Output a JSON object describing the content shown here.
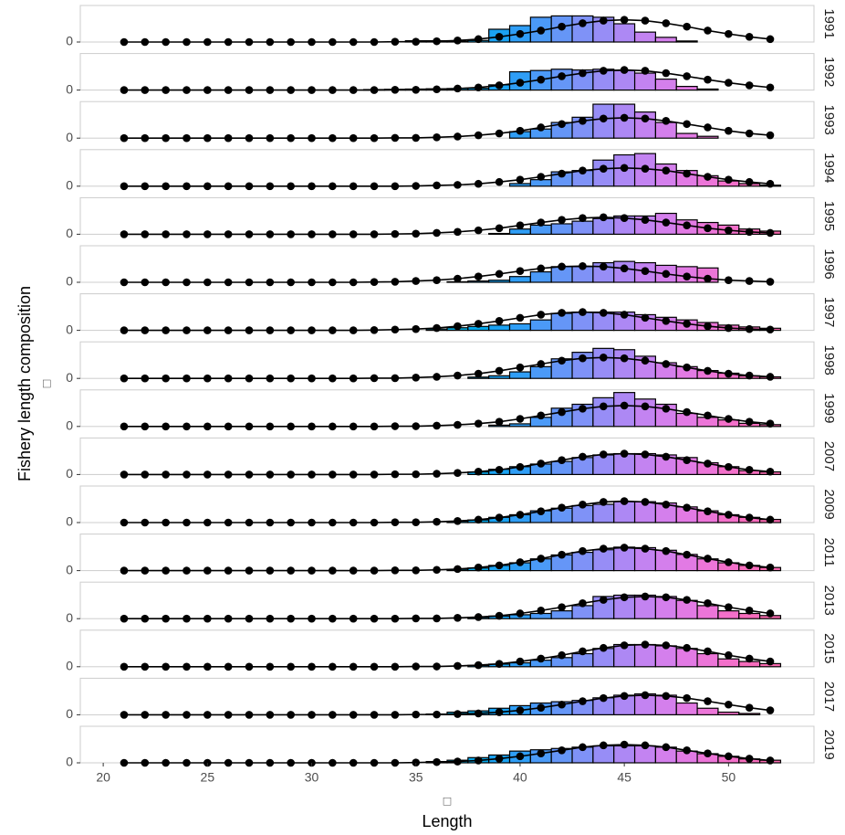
{
  "chart_data": {
    "type": "bar",
    "xlabel": "Length",
    "xlabel_note": "□",
    "ylabel": "Fishery length composition",
    "ylabel_note": "□",
    "xlim": [
      18.9,
      54.1
    ],
    "xticks": [
      20,
      25,
      30,
      35,
      40,
      45,
      50
    ],
    "ylim": [
      0,
      0.14
    ],
    "yticks": [
      0
    ],
    "x": [
      21,
      22,
      23,
      24,
      25,
      26,
      27,
      28,
      29,
      30,
      31,
      32,
      33,
      34,
      35,
      36,
      37,
      38,
      39,
      40,
      41,
      42,
      43,
      44,
      45,
      46,
      47,
      48,
      49,
      50,
      51,
      52
    ],
    "bar_colors": [
      "#00c19a",
      "#00c09e",
      "#00bfa2",
      "#00bea6",
      "#00bdaa",
      "#00bcad",
      "#00bbb0",
      "#00bab3",
      "#00b9b6",
      "#00b8b9",
      "#00b6bc",
      "#00b5bf",
      "#00b4b0",
      "#00b2bb",
      "#00b0c6",
      "#00add1",
      "#00aadc",
      "#05a6e8",
      "#1aa2f2",
      "#2f9ef6",
      "#4b9af7",
      "#6596f7",
      "#7f92f7",
      "#978df6",
      "#ad88f4",
      "#c383f1",
      "#d47fec",
      "#e27ae4",
      "#ec75d8",
      "#f370ca",
      "#f66cbc",
      "#f768ae"
    ],
    "bar_stroke": "#000000",
    "line_color": "#000000",
    "panel_border": "#cccccc",
    "panels": [
      {
        "label": "1991",
        "values": [
          0,
          0,
          0,
          0,
          0,
          0,
          0,
          0,
          0,
          0,
          0,
          0,
          0,
          0,
          0.005,
          0.005,
          0.003,
          0.006,
          0.049,
          0.063,
          0.095,
          0.1,
          0.1,
          0.095,
          0.07,
          0.038,
          0.018,
          0.004,
          0,
          0,
          0,
          0
        ],
        "line_values": [
          0,
          0,
          0,
          0,
          0,
          0,
          0,
          0,
          0,
          0,
          0,
          0,
          0,
          0.001,
          0.001,
          0.003,
          0.006,
          0.011,
          0.02,
          0.031,
          0.044,
          0.059,
          0.072,
          0.082,
          0.085,
          0.082,
          0.072,
          0.059,
          0.044,
          0.031,
          0.02,
          0.011
        ]
      },
      {
        "label": "1992",
        "values": [
          0,
          0,
          0,
          0,
          0,
          0,
          0,
          0,
          0,
          0,
          0,
          0,
          0.002,
          0.003,
          0.004,
          0.005,
          0.006,
          0.007,
          0.02,
          0.07,
          0.075,
          0.08,
          0.077,
          0.08,
          0.075,
          0.065,
          0.042,
          0.014,
          0.004,
          0,
          0,
          0
        ],
        "line_values": [
          0,
          0,
          0,
          0,
          0,
          0,
          0,
          0,
          0,
          0,
          0,
          0,
          0,
          0.001,
          0.001,
          0.003,
          0.006,
          0.01,
          0.018,
          0.028,
          0.04,
          0.053,
          0.065,
          0.074,
          0.077,
          0.074,
          0.065,
          0.053,
          0.04,
          0.028,
          0.018,
          0.01
        ]
      },
      {
        "label": "1993",
        "values": [
          0,
          0,
          0,
          0,
          0,
          0,
          0,
          0,
          0,
          0,
          0,
          0,
          0,
          0,
          0,
          0,
          0,
          0,
          0,
          0.025,
          0.035,
          0.06,
          0.08,
          0.13,
          0.13,
          0.1,
          0.06,
          0.018,
          0.007,
          0,
          0,
          0
        ],
        "line_values": [
          0,
          0,
          0,
          0,
          0,
          0,
          0,
          0,
          0,
          0,
          0,
          0,
          0,
          0.001,
          0.001,
          0.003,
          0.006,
          0.011,
          0.018,
          0.028,
          0.041,
          0.054,
          0.066,
          0.075,
          0.078,
          0.075,
          0.066,
          0.054,
          0.041,
          0.028,
          0.018,
          0.011
        ]
      },
      {
        "label": "1994",
        "values": [
          0,
          0,
          0,
          0,
          0,
          0,
          0,
          0,
          0,
          0,
          0,
          0,
          0,
          0,
          0,
          0,
          0,
          0,
          0,
          0.01,
          0.025,
          0.055,
          0.06,
          0.1,
          0.12,
          0.125,
          0.085,
          0.06,
          0.04,
          0.02,
          0.01,
          0.004
        ],
        "line_values": [
          0,
          0,
          0,
          0,
          0,
          0,
          0,
          0,
          0,
          0,
          0,
          0,
          0,
          0,
          0.001,
          0.003,
          0.005,
          0.009,
          0.016,
          0.025,
          0.036,
          0.048,
          0.06,
          0.067,
          0.07,
          0.067,
          0.06,
          0.048,
          0.036,
          0.025,
          0.016,
          0.009
        ]
      },
      {
        "label": "1995",
        "values": [
          0,
          0,
          0,
          0,
          0,
          0,
          0,
          0,
          0,
          0,
          0,
          0,
          0,
          0,
          0,
          0,
          0,
          0,
          0.003,
          0.02,
          0.035,
          0.04,
          0.05,
          0.06,
          0.07,
          0.07,
          0.08,
          0.055,
          0.045,
          0.035,
          0.02,
          0.012
        ],
        "line_values": [
          0,
          0,
          0,
          0,
          0,
          0,
          0,
          0,
          0,
          0,
          0,
          0,
          0,
          0.001,
          0.002,
          0.005,
          0.009,
          0.015,
          0.023,
          0.034,
          0.045,
          0.055,
          0.062,
          0.065,
          0.062,
          0.055,
          0.045,
          0.034,
          0.023,
          0.015,
          0.009,
          0.005
        ]
      },
      {
        "label": "1996",
        "values": [
          0,
          0,
          0,
          0,
          0,
          0,
          0,
          0,
          0,
          0,
          0,
          0,
          0,
          0,
          0,
          0,
          0.002,
          0.005,
          0.008,
          0.022,
          0.04,
          0.06,
          0.06,
          0.075,
          0.08,
          0.075,
          0.065,
          0.06,
          0.055,
          0,
          0,
          0
        ],
        "line_values": [
          0,
          0,
          0,
          0,
          0,
          0,
          0,
          0,
          0,
          0,
          0,
          0,
          0.001,
          0.002,
          0.005,
          0.008,
          0.014,
          0.022,
          0.032,
          0.043,
          0.053,
          0.06,
          0.062,
          0.06,
          0.053,
          0.043,
          0.032,
          0.022,
          0.014,
          0.008,
          0.005,
          0.002
        ]
      },
      {
        "label": "1997",
        "values": [
          0,
          0,
          0,
          0,
          0,
          0,
          0,
          0,
          0,
          0,
          0,
          0,
          0,
          0,
          0,
          0.005,
          0.01,
          0.015,
          0.02,
          0.025,
          0.04,
          0.065,
          0.07,
          0.07,
          0.07,
          0.06,
          0.05,
          0.04,
          0.03,
          0.02,
          0.013,
          0.008
        ],
        "line_values": [
          0,
          0,
          0,
          0,
          0,
          0,
          0,
          0,
          0,
          0,
          0,
          0,
          0.001,
          0.003,
          0.005,
          0.009,
          0.016,
          0.025,
          0.036,
          0.048,
          0.06,
          0.067,
          0.07,
          0.067,
          0.06,
          0.048,
          0.036,
          0.025,
          0.016,
          0.009,
          0.005,
          0.003
        ]
      },
      {
        "label": "1998",
        "values": [
          0,
          0,
          0,
          0,
          0,
          0,
          0,
          0,
          0,
          0,
          0,
          0,
          0,
          0,
          0,
          0,
          0,
          0.005,
          0.01,
          0.025,
          0.045,
          0.075,
          0.1,
          0.115,
          0.11,
          0.085,
          0.06,
          0.045,
          0.03,
          0.02,
          0.01,
          0.006
        ],
        "line_values": [
          0,
          0,
          0,
          0,
          0,
          0,
          0,
          0,
          0,
          0,
          0,
          0,
          0.001,
          0.001,
          0.003,
          0.006,
          0.011,
          0.018,
          0.029,
          0.042,
          0.055,
          0.068,
          0.077,
          0.08,
          0.077,
          0.068,
          0.055,
          0.042,
          0.029,
          0.018,
          0.011,
          0.006
        ]
      },
      {
        "label": "1999",
        "values": [
          0,
          0,
          0,
          0,
          0,
          0,
          0,
          0,
          0,
          0,
          0,
          0,
          0,
          0,
          0,
          0,
          0,
          0,
          0.005,
          0.01,
          0.035,
          0.07,
          0.085,
          0.11,
          0.13,
          0.105,
          0.085,
          0.05,
          0.035,
          0.025,
          0.012,
          0.007
        ],
        "line_values": [
          0,
          0,
          0,
          0,
          0,
          0,
          0,
          0,
          0,
          0,
          0,
          0,
          0,
          0.001,
          0.001,
          0.003,
          0.006,
          0.011,
          0.018,
          0.029,
          0.042,
          0.055,
          0.068,
          0.077,
          0.08,
          0.077,
          0.068,
          0.055,
          0.042,
          0.029,
          0.018,
          0.011
        ]
      },
      {
        "label": "2007",
        "values": [
          0,
          0,
          0,
          0,
          0,
          0,
          0,
          0,
          0,
          0,
          0,
          0,
          0,
          0,
          0,
          0,
          0,
          0.01,
          0.02,
          0.03,
          0.04,
          0.05,
          0.065,
          0.075,
          0.08,
          0.08,
          0.075,
          0.065,
          0.045,
          0.03,
          0.015,
          0.01
        ],
        "line_values": [
          0,
          0,
          0,
          0,
          0,
          0,
          0,
          0,
          0,
          0,
          0,
          0,
          0,
          0.001,
          0.001,
          0.003,
          0.006,
          0.011,
          0.018,
          0.029,
          0.042,
          0.055,
          0.068,
          0.077,
          0.08,
          0.077,
          0.068,
          0.055,
          0.042,
          0.029,
          0.018,
          0.011
        ]
      },
      {
        "label": "2009",
        "values": [
          0,
          0,
          0,
          0,
          0,
          0,
          0,
          0,
          0,
          0,
          0,
          0,
          0,
          0,
          0,
          0,
          0.005,
          0.01,
          0.02,
          0.03,
          0.045,
          0.055,
          0.065,
          0.07,
          0.08,
          0.08,
          0.075,
          0.06,
          0.045,
          0.03,
          0.02,
          0.012
        ],
        "line_values": [
          0,
          0,
          0,
          0,
          0,
          0,
          0,
          0,
          0,
          0,
          0,
          0,
          0,
          0.001,
          0.001,
          0.003,
          0.006,
          0.011,
          0.019,
          0.03,
          0.043,
          0.057,
          0.069,
          0.079,
          0.082,
          0.079,
          0.069,
          0.057,
          0.043,
          0.03,
          0.019,
          0.011
        ]
      },
      {
        "label": "2011",
        "values": [
          0,
          0,
          0,
          0,
          0,
          0,
          0,
          0,
          0,
          0,
          0,
          0,
          0,
          0,
          0,
          0,
          0.005,
          0.01,
          0.02,
          0.03,
          0.045,
          0.06,
          0.07,
          0.08,
          0.09,
          0.088,
          0.078,
          0.062,
          0.045,
          0.03,
          0.02,
          0.012
        ],
        "line_values": [
          0,
          0,
          0,
          0,
          0,
          0,
          0,
          0,
          0,
          0,
          0,
          0,
          0,
          0.001,
          0.001,
          0.003,
          0.006,
          0.012,
          0.02,
          0.032,
          0.046,
          0.061,
          0.075,
          0.084,
          0.088,
          0.084,
          0.075,
          0.061,
          0.046,
          0.032,
          0.02,
          0.012
        ]
      },
      {
        "label": "2013",
        "values": [
          0,
          0,
          0,
          0,
          0,
          0,
          0,
          0,
          0,
          0,
          0,
          0,
          0,
          0,
          0,
          0,
          0,
          0.005,
          0.01,
          0.015,
          0.02,
          0.03,
          0.05,
          0.085,
          0.09,
          0.09,
          0.085,
          0.07,
          0.05,
          0.03,
          0.02,
          0.012
        ],
        "line_values": [
          0,
          0,
          0,
          0,
          0,
          0,
          0,
          0,
          0,
          0,
          0,
          0,
          0,
          0,
          0.001,
          0.001,
          0.003,
          0.006,
          0.011,
          0.02,
          0.031,
          0.044,
          0.059,
          0.072,
          0.082,
          0.085,
          0.082,
          0.072,
          0.059,
          0.044,
          0.031,
          0.02
        ]
      },
      {
        "label": "2015",
        "values": [
          0,
          0,
          0,
          0,
          0,
          0,
          0,
          0,
          0,
          0,
          0,
          0,
          0,
          0,
          0,
          0,
          0,
          0.005,
          0.01,
          0.015,
          0.025,
          0.035,
          0.05,
          0.07,
          0.085,
          0.085,
          0.08,
          0.07,
          0.05,
          0.03,
          0.02,
          0.012
        ],
        "line_values": [
          0,
          0,
          0,
          0,
          0,
          0,
          0,
          0,
          0,
          0,
          0,
          0,
          0,
          0,
          0.001,
          0.001,
          0.003,
          0.006,
          0.011,
          0.02,
          0.031,
          0.044,
          0.059,
          0.072,
          0.082,
          0.085,
          0.082,
          0.072,
          0.059,
          0.044,
          0.031,
          0.02
        ]
      },
      {
        "label": "2017",
        "values": [
          0,
          0,
          0,
          0,
          0,
          0,
          0,
          0,
          0,
          0,
          0,
          0,
          0,
          0,
          0,
          0.003,
          0.01,
          0.015,
          0.025,
          0.035,
          0.045,
          0.05,
          0.055,
          0.065,
          0.075,
          0.08,
          0.075,
          0.045,
          0.025,
          0.01,
          0.005,
          0
        ],
        "line_values": [
          0,
          0,
          0,
          0,
          0,
          0,
          0,
          0,
          0,
          0,
          0,
          0,
          0,
          0,
          0.001,
          0.001,
          0.003,
          0.005,
          0.01,
          0.017,
          0.027,
          0.039,
          0.052,
          0.064,
          0.072,
          0.075,
          0.072,
          0.064,
          0.052,
          0.039,
          0.027,
          0.017
        ]
      },
      {
        "label": "2019",
        "values": [
          0,
          0,
          0,
          0,
          0,
          0,
          0,
          0,
          0,
          0,
          0,
          0,
          0,
          0,
          0,
          0.005,
          0.01,
          0.02,
          0.03,
          0.045,
          0.05,
          0.055,
          0.06,
          0.065,
          0.065,
          0.065,
          0.06,
          0.045,
          0.035,
          0.025,
          0.015,
          0.01
        ],
        "line_values": [
          0,
          0,
          0,
          0,
          0,
          0,
          0,
          0,
          0,
          0,
          0,
          0,
          0,
          0,
          0.001,
          0.003,
          0.005,
          0.009,
          0.016,
          0.025,
          0.036,
          0.048,
          0.06,
          0.067,
          0.07,
          0.067,
          0.06,
          0.048,
          0.036,
          0.025,
          0.016,
          0.009
        ]
      }
    ]
  }
}
